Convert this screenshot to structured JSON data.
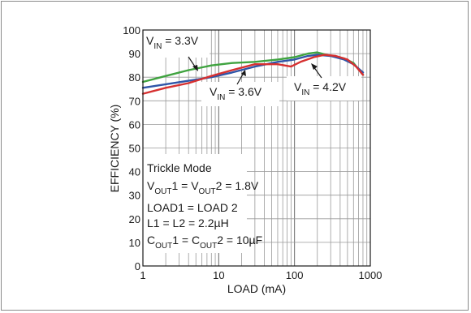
{
  "chart_data": {
    "type": "line",
    "xlabel": "LOAD (mA)",
    "ylabel": "EFFICIENCY (%)",
    "xscale": "log",
    "xlim": [
      1,
      1000
    ],
    "ylim": [
      0,
      100
    ],
    "x_ticks": [
      "1",
      "10",
      "100",
      "1000"
    ],
    "y_ticks": [
      "0",
      "10",
      "20",
      "30",
      "40",
      "50",
      "60",
      "70",
      "80",
      "90",
      "100"
    ],
    "grid": true,
    "series": [
      {
        "name": "VIN = 3.3V",
        "color": "#3fa33f",
        "x": [
          1,
          2,
          4,
          8,
          15,
          30,
          60,
          100,
          150,
          200,
          300,
          450,
          600,
          800
        ],
        "y": [
          78,
          80.5,
          83,
          85,
          86,
          86.5,
          87.5,
          88.5,
          90,
          90.5,
          89,
          88,
          86,
          81
        ]
      },
      {
        "name": "VIN = 3.6V",
        "color": "#2f55a8",
        "x": [
          1,
          2,
          4,
          8,
          15,
          30,
          60,
          100,
          150,
          200,
          300,
          450,
          600,
          800
        ],
        "y": [
          75.5,
          77,
          78.5,
          80,
          82,
          84.5,
          86.5,
          87.5,
          89,
          89.5,
          89,
          87.5,
          85.5,
          82
        ]
      },
      {
        "name": "VIN = 4.2V",
        "color": "#d63030",
        "x": [
          1,
          2,
          4,
          8,
          15,
          30,
          60,
          90,
          120,
          180,
          250,
          350,
          500,
          650,
          800
        ],
        "y": [
          73,
          75.5,
          77.5,
          80.5,
          83,
          85.5,
          85.5,
          84.5,
          86.5,
          88.5,
          89.5,
          89,
          87.5,
          84.5,
          81
        ]
      }
    ],
    "annotations": {
      "vin_33": {
        "main": "V",
        "sub": "IN",
        "rest": " = 3.3V"
      },
      "vin_36": {
        "main": "V",
        "sub": "IN",
        "rest": " = 3.6V"
      },
      "vin_42": {
        "main": "V",
        "sub": "IN",
        "rest": " = 4.2V"
      },
      "conditions": {
        "line1": "Trickle Mode",
        "line2": {
          "a": "V",
          "a_sub": "OUT",
          "b": "1 = V",
          "b_sub": "OUT",
          "c": "2 = 1.8V"
        },
        "line3": "LOAD1 = LOAD 2",
        "line4": "L1 = L2 = 2.2µH",
        "line5": {
          "a": "C",
          "a_sub": "OUT",
          "b": "1 = C",
          "b_sub": "OUT",
          "c": "2 = 10µF"
        }
      }
    }
  }
}
